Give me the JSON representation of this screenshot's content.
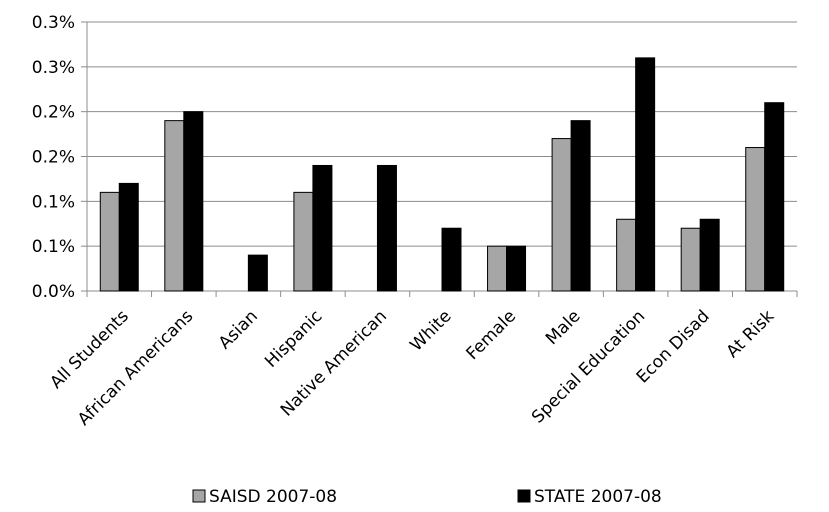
{
  "chart_data": {
    "type": "bar",
    "categories": [
      "All Students",
      "African Americans",
      "Asian",
      "Hispanic",
      "Native American",
      "White",
      "Female",
      "Male",
      "Special Education",
      "Econ Disad",
      "At Risk"
    ],
    "series": [
      {
        "name": "SAISD 2007-08",
        "values": [
          0.11,
          0.19,
          0.0,
          0.11,
          0.0,
          0.0,
          0.05,
          0.17,
          0.08,
          0.07,
          0.16
        ],
        "color": "#a6a6a6"
      },
      {
        "name": "STATE 2007-08",
        "values": [
          0.12,
          0.2,
          0.04,
          0.14,
          0.14,
          0.07,
          0.05,
          0.19,
          0.26,
          0.08,
          0.21
        ],
        "color": "#000000"
      }
    ],
    "y_ticks": [
      "0.0%",
      "0.1%",
      "0.1%",
      "0.2%",
      "0.2%",
      "0.3%",
      "0.3%"
    ],
    "ylim": [
      0,
      0.3
    ],
    "legend_position": "bottom",
    "grid": "horizontal"
  }
}
